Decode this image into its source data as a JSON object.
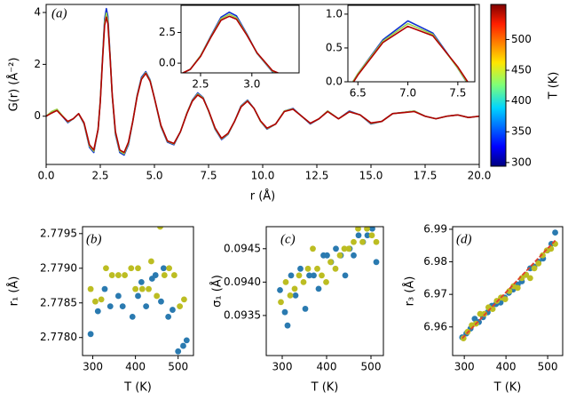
{
  "chart_data": [
    {
      "type": "line",
      "panel_label": "(a)",
      "x_label": "r (Å)",
      "y_label": "G(r) (Å⁻²)",
      "xlim": [
        0,
        20
      ],
      "ylim": [
        -1.86,
        4.31
      ],
      "xticks": [
        {
          "value": 0,
          "label": "0.0"
        },
        2.5,
        {
          "value": 5,
          "label": "5.0"
        },
        7.5,
        {
          "value": 10,
          "label": "10.0"
        },
        12.5,
        {
          "value": 15,
          "label": "15.0"
        },
        17.5,
        {
          "value": 20,
          "label": "20.0"
        }
      ],
      "yticks": [
        0,
        2,
        4
      ],
      "x": [
        0,
        0.25,
        0.5,
        0.75,
        1.0,
        1.25,
        1.5,
        1.75,
        2.0,
        2.2,
        2.4,
        2.5,
        2.6,
        2.7,
        2.78,
        2.85,
        2.95,
        3.05,
        3.2,
        3.4,
        3.6,
        3.8,
        4.0,
        4.2,
        4.4,
        4.6,
        4.8,
        5.0,
        5.3,
        5.6,
        5.9,
        6.2,
        6.5,
        6.75,
        7.0,
        7.25,
        7.5,
        7.8,
        8.1,
        8.4,
        8.7,
        9.0,
        9.3,
        9.6,
        9.9,
        10.2,
        10.6,
        11.0,
        11.4,
        11.8,
        12.2,
        12.6,
        13.0,
        13.5,
        14.0,
        14.5,
        15.0,
        15.5,
        16.0,
        16.5,
        17.0,
        17.5,
        18.0,
        18.5,
        19.0,
        19.5,
        20.0
      ],
      "series": [
        {
          "color": "#1030d0",
          "values": [
            0,
            0.15,
            0.25,
            0.0,
            -0.25,
            -0.1,
            0.1,
            -0.3,
            -1.2,
            -1.4,
            -0.5,
            0.6,
            2.2,
            3.75,
            4.15,
            3.85,
            2.4,
            0.8,
            -0.7,
            -1.4,
            -1.5,
            -1.1,
            -0.2,
            0.8,
            1.5,
            1.72,
            1.4,
            0.7,
            -0.4,
            -1.0,
            -1.1,
            -0.6,
            0.12,
            0.62,
            0.9,
            0.72,
            0.2,
            -0.5,
            -0.9,
            -0.7,
            -0.2,
            0.4,
            0.62,
            0.3,
            -0.2,
            -0.5,
            -0.3,
            0.2,
            0.3,
            0.0,
            -0.3,
            -0.1,
            0.2,
            -0.1,
            0.2,
            0.05,
            -0.3,
            -0.2,
            0.1,
            0.15,
            0.2,
            0.0,
            -0.1,
            0.0,
            0.05,
            -0.05,
            0.0
          ]
        },
        {
          "color": "#9ad24a",
          "values": [
            0,
            0.18,
            0.27,
            0.02,
            -0.22,
            -0.1,
            0.1,
            -0.28,
            -1.15,
            -1.35,
            -0.5,
            0.6,
            2.15,
            3.62,
            3.98,
            3.7,
            2.35,
            0.82,
            -0.65,
            -1.35,
            -1.45,
            -1.05,
            -0.2,
            0.78,
            1.45,
            1.68,
            1.38,
            0.7,
            -0.38,
            -0.97,
            -1.07,
            -0.6,
            0.12,
            0.6,
            0.86,
            0.7,
            0.2,
            -0.48,
            -0.87,
            -0.68,
            -0.2,
            0.38,
            0.6,
            0.3,
            -0.2,
            -0.48,
            -0.3,
            0.2,
            0.28,
            0.0,
            -0.28,
            -0.1,
            0.2,
            -0.1,
            0.18,
            0.05,
            -0.28,
            -0.2,
            0.1,
            0.15,
            0.2,
            0.0,
            -0.1,
            0.0,
            0.05,
            -0.05,
            0.0
          ]
        },
        {
          "color": "#b00000",
          "values": [
            0,
            0.12,
            0.22,
            0.0,
            -0.2,
            -0.1,
            0.1,
            -0.25,
            -1.1,
            -1.3,
            -0.5,
            0.55,
            2.1,
            3.5,
            3.82,
            3.58,
            2.3,
            0.85,
            -0.6,
            -1.3,
            -1.4,
            -1.0,
            -0.2,
            0.75,
            1.42,
            1.65,
            1.35,
            0.7,
            -0.35,
            -0.95,
            -1.05,
            -0.6,
            0.1,
            0.58,
            0.82,
            0.68,
            0.22,
            -0.45,
            -0.85,
            -0.66,
            -0.2,
            0.36,
            0.58,
            0.3,
            -0.18,
            -0.46,
            -0.3,
            0.18,
            0.27,
            0.0,
            -0.27,
            -0.1,
            0.18,
            -0.1,
            0.17,
            0.05,
            -0.26,
            -0.2,
            0.1,
            0.14,
            0.18,
            0.0,
            -0.1,
            0.0,
            0.05,
            -0.05,
            0.0
          ]
        }
      ],
      "insets": [
        {
          "xlim": [
            2.31,
            3.46
          ],
          "ylim": [
            -0.79,
            4.71
          ],
          "xticks": [
            2.5,
            {
              "value": 3,
              "label": "3.0"
            }
          ],
          "yticks": [
            {
              "value": 0,
              "label": "0.0"
            },
            2.5
          ]
        },
        {
          "xlim": [
            6.4,
            7.67
          ],
          "ylim": [
            0,
            1.13
          ],
          "xticks": [
            6.5,
            {
              "value": 7,
              "label": "7.0"
            },
            7.5
          ],
          "yticks": [
            {
              "value": 0,
              "label": "0.0"
            },
            0.5,
            {
              "value": 1,
              "label": "1.0"
            }
          ]
        }
      ],
      "colorbar": {
        "label": "T (K)",
        "lim": [
          294,
          557
        ],
        "ticks": [
          300,
          350,
          400,
          450,
          500
        ]
      }
    },
    {
      "type": "scatter",
      "panel_label": "(b)",
      "x_label": "T (K)",
      "y_label": "r₁ (Å)",
      "xlim": [
        276,
        536
      ],
      "ylim": [
        2.77774,
        2.7796
      ],
      "xticks": [
        300,
        400,
        500
      ],
      "yticks": [
        {
          "value": 2.778,
          "label": "2.7780"
        },
        2.7785,
        {
          "value": 2.779,
          "label": "2.7790"
        },
        2.7795
      ],
      "series": [
        {
          "color": "#2a7ab0",
          "x": [
            295,
            312,
            328,
            341,
            360,
            370,
            393,
            406,
            414,
            425,
            439,
            447,
            460,
            466,
            477,
            487,
            500,
            512,
            520
          ],
          "values": [
            2.77805,
            2.77838,
            2.7787,
            2.77845,
            2.7786,
            2.77845,
            2.7783,
            2.7786,
            2.7788,
            2.77845,
            2.77885,
            2.7789,
            2.77852,
            2.779,
            2.7783,
            2.7784,
            2.7778,
            2.77788,
            2.77796
          ]
        },
        {
          "color": "#bcbd22",
          "x": [
            295,
            306,
            320,
            331,
            345,
            360,
            375,
            390,
            400,
            406,
            416,
            431,
            437,
            450,
            458,
            468,
            479,
            491,
            504,
            514
          ],
          "values": [
            2.7787,
            2.77852,
            2.77855,
            2.779,
            2.7789,
            2.7789,
            2.7789,
            2.779,
            2.7787,
            2.779,
            2.7787,
            2.7787,
            2.7791,
            2.7786,
            2.7796,
            2.7789,
            2.779,
            2.7789,
            2.77845,
            2.77855
          ]
        }
      ]
    },
    {
      "type": "scatter",
      "panel_label": "(c)",
      "x_label": "T (K)",
      "y_label": "σ₁ (Å)",
      "xlim": [
        264,
        528
      ],
      "ylim": [
        0.0929,
        0.09483
      ],
      "xticks": [
        300,
        400,
        500
      ],
      "yticks": [
        0.0935,
        {
          "value": 0.094,
          "label": "0.0940"
        },
        0.0945
      ],
      "series": [
        {
          "color": "#2a7ab0",
          "x": [
            295,
            306,
            312,
            320,
            330,
            341,
            352,
            361,
            371,
            382,
            393,
            401,
            410,
            421,
            432,
            442,
            452,
            461,
            472,
            482,
            492,
            503,
            512
          ],
          "values": [
            0.09388,
            0.09355,
            0.09335,
            0.0941,
            0.0938,
            0.0942,
            0.0936,
            0.0941,
            0.0941,
            0.0939,
            0.0944,
            0.0944,
            0.0943,
            0.0945,
            0.0944,
            0.0941,
            0.0945,
            0.0944,
            0.0947,
            0.0946,
            0.0947,
            0.0948,
            0.0943
          ]
        },
        {
          "color": "#bcbd22",
          "x": [
            297,
            308,
            318,
            328,
            338,
            348,
            358,
            369,
            379,
            389,
            399,
            409,
            420,
            430,
            440,
            450,
            461,
            471,
            481,
            491,
            502,
            512
          ],
          "values": [
            0.0937,
            0.094,
            0.0938,
            0.0939,
            0.0941,
            0.094,
            0.0942,
            0.0945,
            0.0942,
            0.0941,
            0.094,
            0.0943,
            0.0942,
            0.0944,
            0.0945,
            0.0945,
            0.0946,
            0.0948,
            0.0946,
            0.0948,
            0.0947,
            0.0946
          ]
        }
      ]
    },
    {
      "type": "scatter",
      "panel_label": "(d)",
      "x_label": "T (K)",
      "y_label": "r₃ (Å)",
      "xlim": [
        272,
        536
      ],
      "ylim": [
        6.9512,
        6.9908
      ],
      "xticks": [
        300,
        400,
        500
      ],
      "yticks": [
        6.96,
        6.97,
        6.98,
        6.99
      ],
      "series": [
        {
          "color": "#2a7ab0",
          "x": [
            295,
            305,
            315,
            325,
            335,
            345,
            356,
            366,
            376,
            387,
            397,
            407,
            417,
            428,
            438,
            448,
            458,
            468,
            478,
            489,
            499,
            509,
            518
          ],
          "values": [
            6.9568,
            6.958,
            6.9595,
            6.9625,
            6.9615,
            6.963,
            6.9645,
            6.9665,
            6.967,
            6.9675,
            6.969,
            6.9705,
            6.9715,
            6.973,
            6.974,
            6.976,
            6.978,
            6.9785,
            6.98,
            6.981,
            6.9835,
            6.9855,
            6.989
          ]
        },
        {
          "color": "#bcbd22",
          "x": [
            298,
            308,
            318,
            328,
            338,
            348,
            358,
            368,
            378,
            388,
            398,
            408,
            418,
            428,
            438,
            448,
            458,
            468,
            478,
            488,
            498,
            508,
            518
          ],
          "values": [
            6.9565,
            6.9585,
            6.9605,
            6.961,
            6.964,
            6.964,
            6.966,
            6.9655,
            6.968,
            6.969,
            6.9685,
            6.971,
            6.9725,
            6.972,
            6.975,
            6.976,
            6.975,
            6.978,
            6.9795,
            6.982,
            6.9835,
            6.984,
            6.9855
          ]
        }
      ],
      "fit": {
        "color": "#e0402a",
        "x": [
          295,
          520
        ],
        "values": [
          6.9565,
          6.9868
        ]
      }
    }
  ]
}
